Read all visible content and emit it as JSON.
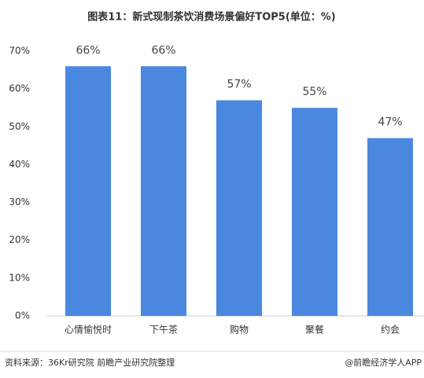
{
  "chart_data": {
    "type": "bar",
    "title": "图表11：新式现制茶饮消费场景偏好TOP5(单位：%)",
    "categories": [
      "心情愉悦时",
      "下午茶",
      "购物",
      "聚餐",
      "约会"
    ],
    "values": [
      66,
      66,
      57,
      55,
      47
    ],
    "value_labels": [
      "66%",
      "66%",
      "57%",
      "55%",
      "47%"
    ],
    "color": "#4a88e0",
    "ylim": [
      0,
      70
    ],
    "yticks": [
      {
        "value": 0,
        "label": "0%"
      },
      {
        "value": 10,
        "label": "10%"
      },
      {
        "value": 20,
        "label": "20%"
      },
      {
        "value": 30,
        "label": "30%"
      },
      {
        "value": 40,
        "label": "40%"
      },
      {
        "value": 50,
        "label": "50%"
      },
      {
        "value": 60,
        "label": "60%"
      },
      {
        "value": 70,
        "label": "70%"
      }
    ],
    "grid": false,
    "source": "资料来源：36Kr研究院 前瞻产业研究院整理",
    "credit": "@前瞻经济学人APP"
  }
}
